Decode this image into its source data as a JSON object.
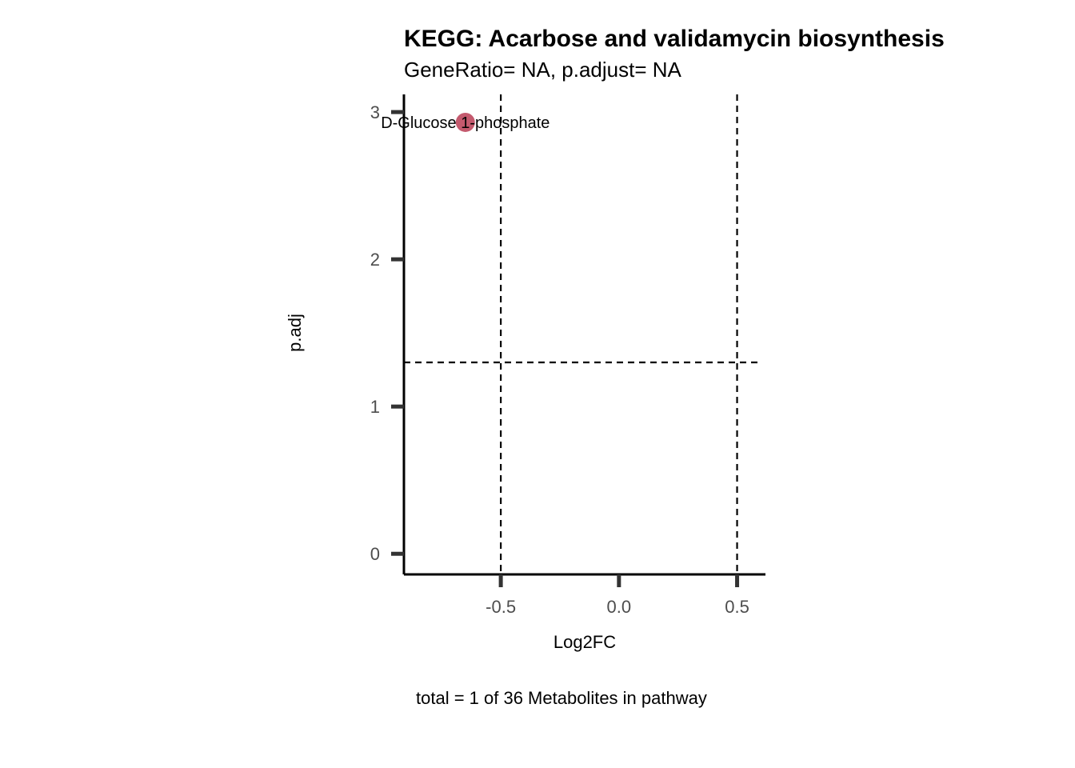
{
  "chart_data": {
    "type": "scatter",
    "title": "KEGG: Acarbose and validamycin biosynthesis",
    "subtitle": "GeneRatio= NA, p.adjust= NA",
    "xlabel": "Log2FC",
    "ylabel": "p.adj",
    "caption": "total = 1 of 36 Metabolites in pathway",
    "xlim": [
      -0.91,
      0.62
    ],
    "ylim": [
      -0.14,
      3.12
    ],
    "x_ticks": [
      -0.5,
      0.0,
      0.5
    ],
    "x_tick_labels": [
      "-0.5",
      "0.0",
      "0.5"
    ],
    "y_ticks": [
      0,
      1,
      2,
      3
    ],
    "y_tick_labels": [
      "0",
      "1",
      "2",
      "3"
    ],
    "vlines": [
      -0.5,
      0.5
    ],
    "hlines": [
      1.3
    ],
    "grid": false,
    "legend": "none",
    "point_color": "#c45a6e",
    "points": [
      {
        "label": "D-Glucose 1-phosphate",
        "x": -0.65,
        "y": 2.93
      }
    ]
  }
}
